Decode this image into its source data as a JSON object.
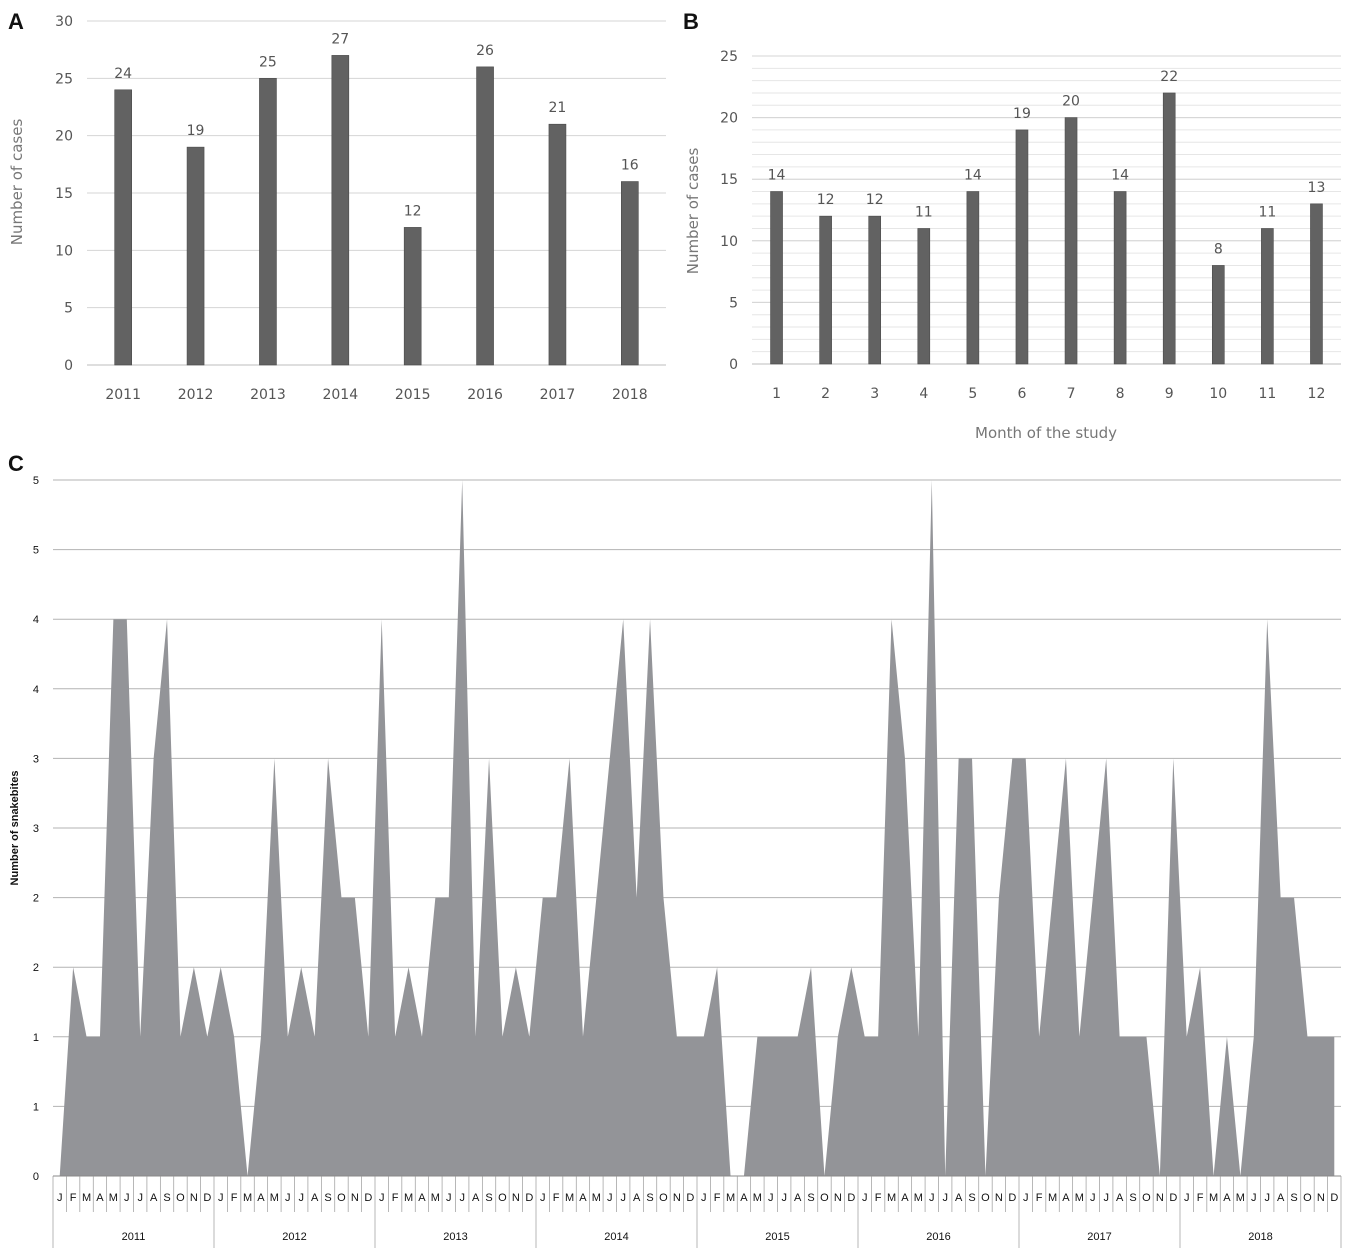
{
  "chart_data": [
    {
      "panel": "A",
      "type": "bar",
      "categories": [
        "2011",
        "2012",
        "2013",
        "2014",
        "2015",
        "2016",
        "2017",
        "2018"
      ],
      "values": [
        24,
        19,
        25,
        27,
        12,
        26,
        21,
        16
      ],
      "title": "",
      "xlabel": "",
      "ylabel": "Number of cases",
      "ylim": [
        0,
        30
      ],
      "yticks": [
        0,
        5,
        10,
        15,
        20,
        25,
        30
      ],
      "grid": true,
      "bar_color": "#626262"
    },
    {
      "panel": "B",
      "type": "bar",
      "categories": [
        "1",
        "2",
        "3",
        "4",
        "5",
        "6",
        "7",
        "8",
        "9",
        "10",
        "11",
        "12"
      ],
      "values": [
        14,
        12,
        12,
        11,
        14,
        19,
        20,
        14,
        22,
        8,
        11,
        13
      ],
      "title": "",
      "xlabel": "Month of the study",
      "ylabel": "Number of cases",
      "ylim": [
        0,
        25
      ],
      "yticks": [
        0,
        5,
        10,
        15,
        20,
        25
      ],
      "grid": true,
      "bar_color": "#626262"
    },
    {
      "panel": "C",
      "type": "area",
      "title": "",
      "xlabel": "",
      "ylabel": "Number of snakebites",
      "ylim": [
        0,
        5
      ],
      "ytick_values": [
        0,
        0.5,
        1,
        1.5,
        2,
        2.5,
        3,
        3.5,
        4,
        4.5,
        5
      ],
      "ytick_labels": [
        "0",
        "1",
        "1",
        "2",
        "2",
        "3",
        "3",
        "4",
        "4",
        "5",
        "5"
      ],
      "grid": true,
      "fill_color": "#939498",
      "years": [
        "2011",
        "2012",
        "2013",
        "2014",
        "2015",
        "2016",
        "2017",
        "2018"
      ],
      "month_letters": [
        "J",
        "F",
        "M",
        "A",
        "M",
        "J",
        "J",
        "A",
        "S",
        "O",
        "N",
        "D"
      ],
      "values": [
        0,
        1.5,
        1,
        1,
        4,
        4,
        1,
        3,
        4,
        1,
        1.5,
        1,
        1.5,
        1,
        0,
        1,
        3,
        1,
        1.5,
        1,
        3,
        2,
        2,
        1,
        4,
        1,
        1.5,
        1,
        2,
        2,
        5,
        1,
        3,
        1,
        1.5,
        1,
        2,
        2,
        3,
        1,
        2,
        3,
        4,
        2,
        4,
        2,
        1,
        1,
        1,
        1.5,
        0,
        0,
        1,
        1,
        1,
        1,
        1.5,
        0,
        1,
        1.5,
        1,
        1,
        4,
        3,
        1,
        5,
        0,
        3,
        3,
        0,
        2,
        3,
        3,
        1,
        2,
        3,
        1,
        2,
        3,
        1,
        1,
        1,
        0,
        3,
        1,
        1.5,
        0,
        1,
        0,
        1,
        4,
        2,
        2,
        1,
        1,
        1
      ]
    }
  ]
}
